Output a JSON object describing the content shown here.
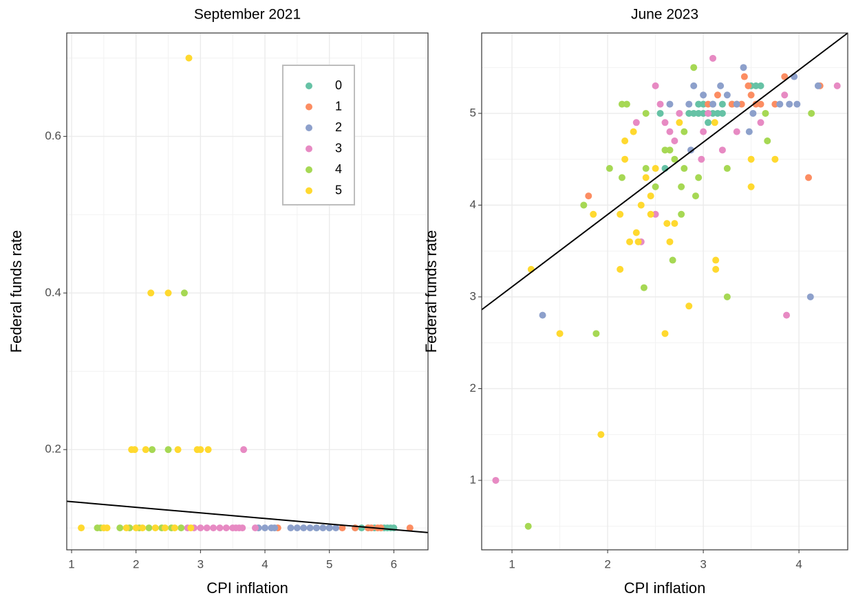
{
  "chart_data": [
    {
      "type": "scatter",
      "title": "September 2021",
      "x_label": "CPI inflation",
      "y_label": "Federal funds rate",
      "xlim": [
        0.925,
        6.53
      ],
      "ylim": [
        0.072,
        0.732
      ],
      "xticks": [
        1,
        2,
        3,
        4,
        5,
        6
      ],
      "yticks": [
        0.2,
        0.4,
        0.6
      ],
      "minor_xticks": [
        1.5,
        2.5,
        3.5,
        4.5,
        5.5,
        6.5
      ],
      "minor_yticks": [
        0.1,
        0.3,
        0.5,
        0.7
      ],
      "grid": true,
      "legend": true,
      "series": [
        {
          "name": "0",
          "color": "#66c2a5",
          "x": [
            4.8,
            5.0,
            5.4,
            5.5,
            5.6,
            5.7,
            5.8,
            5.85,
            5.9,
            5.95,
            6.0
          ],
          "y": [
            0.1,
            0.1,
            0.1,
            0.1,
            0.1,
            0.1,
            0.1,
            0.1,
            0.1,
            0.1,
            0.1
          ]
        },
        {
          "name": "1",
          "color": "#fc8d62",
          "x": [
            4.2,
            5.2,
            5.4,
            5.6,
            5.65,
            5.75,
            5.8,
            6.25
          ],
          "y": [
            0.1,
            0.1,
            0.1,
            0.1,
            0.1,
            0.1,
            0.1,
            0.1
          ]
        },
        {
          "name": "2",
          "color": "#8da0cb",
          "x": [
            3.9,
            4.0,
            4.1,
            4.15,
            4.4,
            4.5,
            4.6,
            4.7,
            4.8,
            4.9,
            5.0,
            5.1
          ],
          "y": [
            0.1,
            0.1,
            0.1,
            0.1,
            0.1,
            0.1,
            0.1,
            0.1,
            0.1,
            0.1,
            0.1,
            0.1
          ]
        },
        {
          "name": "3",
          "color": "#e78ac3",
          "x": [
            2.8,
            2.9,
            3.0,
            3.1,
            3.2,
            3.3,
            3.4,
            3.5,
            3.55,
            3.6,
            3.65,
            3.85,
            3.67
          ],
          "y": [
            0.1,
            0.1,
            0.1,
            0.1,
            0.1,
            0.1,
            0.1,
            0.1,
            0.1,
            0.1,
            0.1,
            0.1,
            0.2
          ]
        },
        {
          "name": "4",
          "color": "#a6d854",
          "x": [
            1.4,
            1.45,
            1.75,
            1.9,
            2.05,
            2.2,
            2.4,
            2.55,
            2.7,
            2.25,
            2.5,
            2.75
          ],
          "y": [
            0.1,
            0.1,
            0.1,
            0.1,
            0.1,
            0.1,
            0.1,
            0.1,
            0.1,
            0.2,
            0.2,
            0.4
          ]
        },
        {
          "name": "5",
          "color": "#ffd92f",
          "x": [
            1.15,
            1.5,
            1.55,
            1.85,
            2.0,
            2.1,
            2.3,
            2.45,
            2.6,
            2.85,
            1.93,
            1.98,
            2.15,
            2.65,
            2.95,
            3.0,
            3.12,
            2.23,
            2.5,
            2.82
          ],
          "y": [
            0.1,
            0.1,
            0.1,
            0.1,
            0.1,
            0.1,
            0.1,
            0.1,
            0.1,
            0.1,
            0.2,
            0.2,
            0.2,
            0.2,
            0.2,
            0.2,
            0.2,
            0.4,
            0.4,
            0.7
          ]
        }
      ],
      "fit": {
        "color": "#000000",
        "x": [
          0.925,
          6.53
        ],
        "y": [
          0.134,
          0.094
        ]
      }
    },
    {
      "type": "scatter",
      "title": "June 2023",
      "x_label": "CPI inflation",
      "y_label": "Federal funds rate",
      "xlim": [
        0.683,
        4.51
      ],
      "ylim": [
        0.243,
        5.876
      ],
      "xticks": [
        1,
        2,
        3,
        4
      ],
      "yticks": [
        1,
        2,
        3,
        4,
        5
      ],
      "minor_xticks": [
        1.5,
        2.5,
        3.5,
        4.5
      ],
      "minor_yticks": [
        0.5,
        1.5,
        2.5,
        3.5,
        4.5,
        5.5
      ],
      "grid": true,
      "legend": false,
      "series": [
        {
          "name": "0",
          "color": "#66c2a5",
          "x": [
            2.55,
            2.85,
            2.9,
            2.95,
            3.0,
            3.05,
            3.1,
            3.15,
            3.2,
            2.95,
            3.0,
            3.1,
            3.2,
            3.3,
            3.5,
            3.55,
            3.6,
            3.05,
            2.6
          ],
          "y": [
            5.0,
            5.0,
            5.0,
            5.0,
            5.0,
            5.0,
            5.0,
            5.0,
            5.0,
            5.1,
            5.1,
            5.1,
            5.1,
            5.1,
            5.3,
            5.3,
            5.3,
            4.9,
            4.4
          ]
        },
        {
          "name": "1",
          "color": "#fc8d62",
          "x": [
            1.8,
            3.15,
            3.3,
            3.35,
            3.43,
            3.47,
            3.5,
            3.55,
            3.6,
            3.75,
            3.85,
            4.1,
            4.22,
            3.05,
            3.4
          ],
          "y": [
            4.1,
            5.2,
            5.1,
            5.1,
            5.4,
            5.3,
            5.2,
            5.1,
            5.1,
            5.1,
            5.4,
            4.3,
            5.3,
            5.1,
            5.1
          ]
        },
        {
          "name": "2",
          "color": "#8da0cb",
          "x": [
            1.32,
            2.65,
            2.85,
            2.9,
            3.0,
            3.1,
            3.18,
            3.25,
            3.35,
            3.42,
            3.48,
            3.52,
            3.8,
            3.9,
            3.95,
            3.98,
            4.12,
            4.2,
            2.87
          ],
          "y": [
            2.8,
            5.1,
            5.1,
            5.3,
            5.2,
            5.1,
            5.3,
            5.2,
            5.1,
            5.5,
            4.8,
            5.0,
            5.1,
            5.1,
            5.4,
            5.1,
            3.0,
            5.3,
            4.6
          ]
        },
        {
          "name": "3",
          "color": "#e78ac3",
          "x": [
            0.83,
            2.3,
            2.35,
            2.5,
            2.55,
            2.6,
            2.65,
            2.7,
            2.75,
            2.98,
            3.0,
            3.05,
            3.1,
            3.2,
            3.35,
            3.6,
            3.85,
            3.87,
            4.4,
            2.5
          ],
          "y": [
            1.0,
            4.9,
            3.6,
            5.3,
            5.1,
            4.9,
            4.8,
            4.7,
            5.0,
            4.5,
            4.8,
            5.0,
            5.6,
            4.6,
            4.8,
            4.9,
            5.2,
            2.8,
            5.3,
            3.9
          ]
        },
        {
          "name": "4",
          "color": "#a6d854",
          "x": [
            1.17,
            1.75,
            1.88,
            2.02,
            2.15,
            2.2,
            2.15,
            2.38,
            2.4,
            2.4,
            2.5,
            2.6,
            2.65,
            2.68,
            2.7,
            2.77,
            2.8,
            2.77,
            2.9,
            2.95,
            2.92,
            3.25,
            3.25,
            3.65,
            3.67,
            4.13,
            2.8
          ],
          "y": [
            0.5,
            4.0,
            2.6,
            4.4,
            5.1,
            5.1,
            4.3,
            3.1,
            4.4,
            5.0,
            4.2,
            4.6,
            4.6,
            3.4,
            4.5,
            4.2,
            4.8,
            3.9,
            5.5,
            4.3,
            4.1,
            4.4,
            3.0,
            5.0,
            4.7,
            5.0,
            4.4
          ]
        },
        {
          "name": "5",
          "color": "#ffd92f",
          "x": [
            1.2,
            1.5,
            1.85,
            1.93,
            2.13,
            2.13,
            2.18,
            2.18,
            2.23,
            2.27,
            2.3,
            2.32,
            2.35,
            2.4,
            2.45,
            2.45,
            2.6,
            2.62,
            2.65,
            2.7,
            2.75,
            2.85,
            3.13,
            3.13,
            3.12,
            3.5,
            3.5,
            3.75,
            2.5
          ],
          "y": [
            3.3,
            2.6,
            3.9,
            1.5,
            3.3,
            3.9,
            4.7,
            4.5,
            3.6,
            4.8,
            3.7,
            3.6,
            4.0,
            4.3,
            3.9,
            4.1,
            2.6,
            3.8,
            3.6,
            3.8,
            4.9,
            2.9,
            3.4,
            3.3,
            4.9,
            4.5,
            4.2,
            4.5,
            4.4
          ]
        }
      ],
      "fit": {
        "color": "#000000",
        "x": [
          0.683,
          4.51
        ],
        "y": [
          2.86,
          5.876
        ]
      }
    }
  ]
}
